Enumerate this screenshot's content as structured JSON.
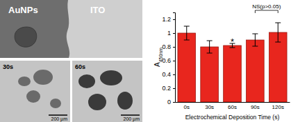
{
  "chart_data": {
    "type": "bar",
    "categories": [
      "0s",
      "30s",
      "60s",
      "90s",
      "120s"
    ],
    "values": [
      1.0,
      0.8,
      0.82,
      0.9,
      1.01
    ],
    "errors": [
      0.1,
      0.09,
      0.03,
      0.09,
      0.14
    ],
    "color": "#e8261e",
    "xlabel": "Electrochemical Deposition Time (s)",
    "ylabel": {
      "main": "A",
      "sub": "450nm"
    },
    "ylim": [
      0,
      1.3
    ],
    "yticks": [
      0,
      0.2,
      0.4,
      0.6,
      0.8,
      1,
      1.2
    ],
    "grid": false,
    "annotations": [
      {
        "text": "*",
        "category": "60s"
      },
      {
        "text": "NS(p>0.05)",
        "from": "90s",
        "to": "120s"
      }
    ]
  },
  "images": {
    "top": {
      "labels": [
        "AuNPs",
        "ITO"
      ]
    },
    "bottom": [
      {
        "label": "30s",
        "scale_bar": "200 µm"
      },
      {
        "label": "60s",
        "scale_bar": "200 µm"
      }
    ]
  }
}
